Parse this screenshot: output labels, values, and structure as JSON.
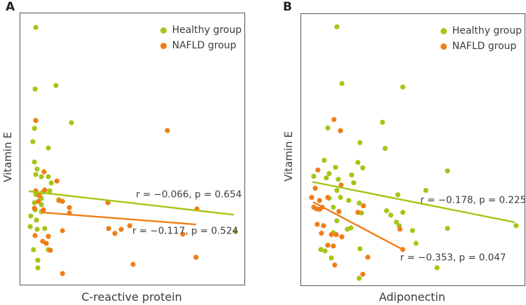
{
  "chart_data": [
    {
      "panel_label": "A",
      "type": "scatter",
      "title": "",
      "xlabel": "C-reactive protein",
      "ylabel": "Vitamin E",
      "axis_ticks": "none",
      "grid": false,
      "legend_position": "top-right-inside",
      "coords_note": "points are [x, y] in percent of plot area, origin top-left",
      "legend": [
        {
          "label": "Healthy group",
          "color": "#a6c515"
        },
        {
          "label": "NAFLD group",
          "color": "#f07d17"
        }
      ],
      "series": [
        {
          "name": "Healthy group",
          "color": "#a6c515",
          "correlation_r": "−0.066",
          "p_value": "0.654",
          "annotation": "r = −0.066, p = 0.654",
          "annotation_pos": [
            75.2,
            66.9
          ],
          "trendline": [
            4.1,
            65.6,
            95.0,
            74.2
          ],
          "points": [
            [
              6.9,
              5.2
            ],
            [
              6.6,
              27.9
            ],
            [
              15.9,
              26.6
            ],
            [
              22.8,
              40.3
            ],
            [
              6.3,
              42.4
            ],
            [
              5.6,
              47.3
            ],
            [
              12.5,
              49.6
            ],
            [
              6.3,
              54.8
            ],
            [
              7.5,
              57.4
            ],
            [
              6.9,
              59.4
            ],
            [
              9.4,
              60.2
            ],
            [
              12.5,
              60.2
            ],
            [
              13.8,
              62.5
            ],
            [
              10.0,
              65.9
            ],
            [
              13.1,
              65.4
            ],
            [
              6.9,
              66.7
            ],
            [
              9.4,
              68.2
            ],
            [
              17.2,
              68.7
            ],
            [
              6.3,
              69.8
            ],
            [
              9.4,
              70.5
            ],
            [
              6.6,
              72.4
            ],
            [
              9.4,
              73.1
            ],
            [
              4.7,
              74.7
            ],
            [
              7.2,
              76.2
            ],
            [
              4.4,
              78.6
            ],
            [
              7.5,
              79.6
            ],
            [
              10.9,
              79.3
            ],
            [
              5.9,
              87.1
            ],
            [
              12.5,
              87.1
            ],
            [
              7.8,
              91.0
            ],
            [
              7.8,
              93.8
            ],
            [
              95.9,
              80.4
            ]
          ]
        },
        {
          "name": "NAFLD group",
          "color": "#f07d17",
          "correlation_r": "−0.117",
          "p_value": "0.524",
          "annotation": "r = −0.117, p = 0.524",
          "annotation_pos": [
            73.6,
            80.4
          ],
          "trendline": [
            10.0,
            73.4,
            78.1,
            77.8
          ],
          "points": [
            [
              6.9,
              39.5
            ],
            [
              65.6,
              43.2
            ],
            [
              10.6,
              58.4
            ],
            [
              16.3,
              61.8
            ],
            [
              6.9,
              65.4
            ],
            [
              10.9,
              65.1
            ],
            [
              8.4,
              67.2
            ],
            [
              8.1,
              69.3
            ],
            [
              18.8,
              69.3
            ],
            [
              39.1,
              69.8
            ],
            [
              6.3,
              71.8
            ],
            [
              10.3,
              72.4
            ],
            [
              17.2,
              69.0
            ],
            [
              21.9,
              71.6
            ],
            [
              21.9,
              73.6
            ],
            [
              78.8,
              72.1
            ],
            [
              6.6,
              81.9
            ],
            [
              12.5,
              82.2
            ],
            [
              18.8,
              80.1
            ],
            [
              39.4,
              79.3
            ],
            [
              42.2,
              81.1
            ],
            [
              45.0,
              79.6
            ],
            [
              48.8,
              78.3
            ],
            [
              72.5,
              81.4
            ],
            [
              10.0,
              84.0
            ],
            [
              11.6,
              84.8
            ],
            [
              13.4,
              87.3
            ],
            [
              78.4,
              89.9
            ],
            [
              50.3,
              92.5
            ],
            [
              18.8,
              95.9
            ]
          ]
        }
      ]
    },
    {
      "panel_label": "B",
      "type": "scatter",
      "title": "",
      "xlabel": "Adiponectin",
      "ylabel": "Vitamin E",
      "axis_ticks": "none",
      "grid": false,
      "legend_position": "top-right-inside",
      "coords_note": "points are [x, y] in percent of plot area, origin top-left",
      "legend": [
        {
          "label": "Healthy group",
          "color": "#a6c515"
        },
        {
          "label": "NAFLD group",
          "color": "#f07d17"
        }
      ],
      "series": [
        {
          "name": "Healthy group",
          "color": "#a6c515",
          "correlation_r": "−0.178",
          "p_value": "0.225",
          "annotation": "r = −0.178, p = 0.225",
          "annotation_pos": [
            77.0,
            68.7
          ],
          "trendline": [
            5.3,
            61.9,
            95.3,
            76.7
          ],
          "points": [
            [
              16.0,
              4.7
            ],
            [
              18.2,
              25.6
            ],
            [
              45.5,
              26.9
            ],
            [
              11.9,
              42.0
            ],
            [
              36.4,
              39.9
            ],
            [
              26.3,
              47.4
            ],
            [
              37.6,
              49.5
            ],
            [
              10.3,
              53.9
            ],
            [
              25.4,
              54.7
            ],
            [
              12.5,
              58.8
            ],
            [
              15.4,
              56.5
            ],
            [
              27.6,
              56.7
            ],
            [
              5.6,
              59.8
            ],
            [
              11.3,
              60.4
            ],
            [
              22.6,
              59.3
            ],
            [
              16.6,
              60.9
            ],
            [
              23.5,
              62.2
            ],
            [
              65.5,
              57.8
            ],
            [
              16.0,
              65.0
            ],
            [
              55.8,
              65.0
            ],
            [
              12.5,
              67.9
            ],
            [
              17.6,
              67.6
            ],
            [
              21.3,
              68.7
            ],
            [
              26.0,
              69.7
            ],
            [
              27.0,
              73.3
            ],
            [
              38.2,
              72.5
            ],
            [
              40.1,
              74.1
            ],
            [
              45.5,
              73.1
            ],
            [
              43.3,
              66.6
            ],
            [
              16.0,
              76.2
            ],
            [
              14.4,
              71.2
            ],
            [
              14.4,
              80.6
            ],
            [
              20.7,
              79.3
            ],
            [
              22.3,
              78.8
            ],
            [
              42.6,
              76.7
            ],
            [
              43.9,
              78.0
            ],
            [
              49.8,
              79.8
            ],
            [
              65.5,
              79.0
            ],
            [
              8.8,
              86.8
            ],
            [
              10.7,
              87.3
            ],
            [
              26.3,
              86.5
            ],
            [
              51.4,
              84.5
            ],
            [
              13.5,
              89.9
            ],
            [
              60.8,
              93.5
            ],
            [
              96.2,
              78.0
            ],
            [
              26.0,
              97.4
            ]
          ]
        },
        {
          "name": "NAFLD group",
          "color": "#f07d17",
          "correlation_r": "−0.353",
          "p_value": "0.047",
          "annotation": "r = −0.353, p = 0.047",
          "annotation_pos": [
            68.0,
            89.9
          ],
          "trendline": [
            5.6,
            69.4,
            45.5,
            86.8
          ],
          "points": [
            [
              14.7,
              38.9
            ],
            [
              17.6,
              43.0
            ],
            [
              7.5,
              57.5
            ],
            [
              17.9,
              63.0
            ],
            [
              4.7,
              67.6
            ],
            [
              6.3,
              64.2
            ],
            [
              8.2,
              68.7
            ],
            [
              11.9,
              67.6
            ],
            [
              5.6,
              71.2
            ],
            [
              6.9,
              71.8
            ],
            [
              8.2,
              72.0
            ],
            [
              9.4,
              71.2
            ],
            [
              16.9,
              72.8
            ],
            [
              25.4,
              73.1
            ],
            [
              27.9,
              70.7
            ],
            [
              7.2,
              77.5
            ],
            [
              10.0,
              78.0
            ],
            [
              9.1,
              80.8
            ],
            [
              13.5,
              81.3
            ],
            [
              15.7,
              81.3
            ],
            [
              18.2,
              82.1
            ],
            [
              44.2,
              79.3
            ],
            [
              11.9,
              85.2
            ],
            [
              14.4,
              85.5
            ],
            [
              45.5,
              86.8
            ],
            [
              29.8,
              89.6
            ],
            [
              15.0,
              92.5
            ],
            [
              27.6,
              95.9
            ]
          ]
        }
      ]
    }
  ]
}
